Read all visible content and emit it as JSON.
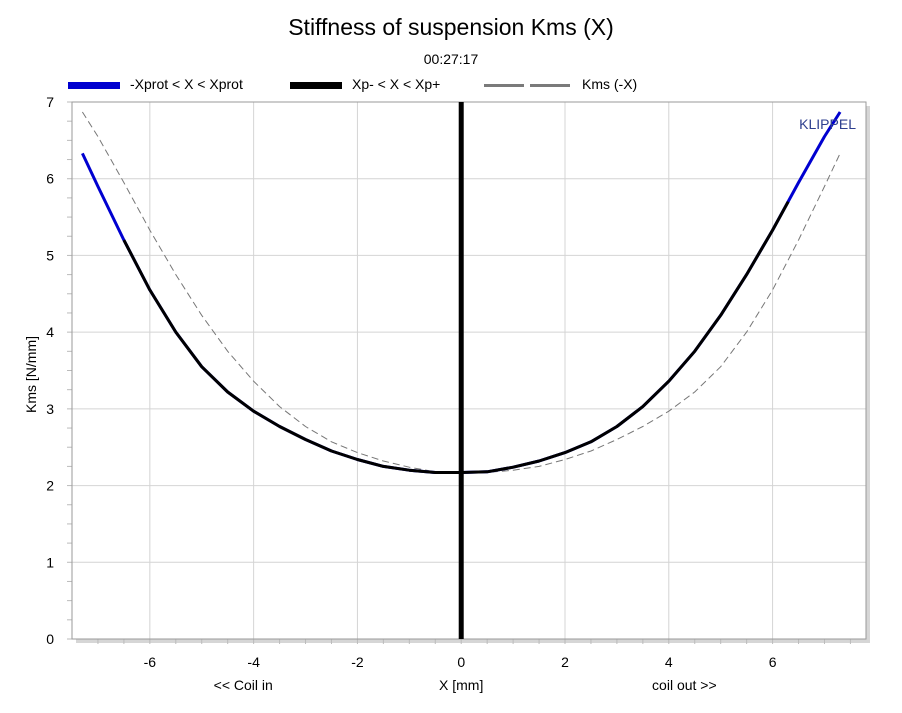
{
  "chart_data": {
    "type": "line",
    "title": "Stiffness of suspension Kms (X)",
    "subtitle": "00:27:17",
    "xlabel": "X [mm]",
    "ylabel": "Kms [N/mm]",
    "x_annotation_left": "<< Coil in",
    "x_annotation_right": "coil out >>",
    "watermark": "KLIPPEL",
    "xlim": [
      -7.5,
      7.8
    ],
    "ylim": [
      0,
      7
    ],
    "xticks": [
      "-6",
      "-4",
      "-2",
      "0",
      "2",
      "4",
      "6"
    ],
    "yticks": [
      "0",
      "1",
      "2",
      "3",
      "4",
      "5",
      "6",
      "7"
    ],
    "grid": true,
    "legend_position": "top",
    "series": [
      {
        "name": "-Xprot < X < Xprot",
        "color": "#0000d0",
        "style": "solid-thick",
        "x": [
          -7.3,
          -7.0,
          -6.5,
          -6.0,
          -5.5,
          -5.0,
          -4.5,
          -4.0,
          -3.5,
          -3.0,
          -2.5,
          -2.0,
          -1.5,
          -1.0,
          -0.5,
          0.0,
          0.5,
          1.0,
          1.5,
          2.0,
          2.5,
          3.0,
          3.5,
          4.0,
          4.5,
          5.0,
          5.5,
          6.0,
          6.5,
          7.0,
          7.3
        ],
        "y": [
          6.33,
          5.9,
          5.2,
          4.55,
          4.0,
          3.55,
          3.22,
          2.97,
          2.77,
          2.6,
          2.45,
          2.34,
          2.25,
          2.2,
          2.17,
          2.17,
          2.18,
          2.24,
          2.32,
          2.43,
          2.57,
          2.77,
          3.03,
          3.36,
          3.75,
          4.22,
          4.75,
          5.33,
          5.95,
          6.55,
          6.87
        ]
      },
      {
        "name": "Xp- < X < Xp+",
        "color": "#000000",
        "style": "solid-thick",
        "x": [
          -6.5,
          -6.0,
          -5.5,
          -5.0,
          -4.5,
          -4.0,
          -3.5,
          -3.0,
          -2.5,
          -2.0,
          -1.5,
          -1.0,
          -0.5,
          0.0,
          0.5,
          1.0,
          1.5,
          2.0,
          2.5,
          3.0,
          3.5,
          4.0,
          4.5,
          5.0,
          5.5,
          6.0,
          6.3
        ],
        "y": [
          5.2,
          4.55,
          4.0,
          3.55,
          3.22,
          2.97,
          2.77,
          2.6,
          2.45,
          2.34,
          2.25,
          2.2,
          2.17,
          2.17,
          2.18,
          2.24,
          2.32,
          2.43,
          2.57,
          2.77,
          3.03,
          3.36,
          3.75,
          4.22,
          4.75,
          5.33,
          5.7
        ]
      },
      {
        "name": "Kms (-X)",
        "color": "#777777",
        "style": "dashed-thin",
        "x": [
          -7.3,
          -7.0,
          -6.5,
          -6.0,
          -5.5,
          -5.0,
          -4.5,
          -4.0,
          -3.5,
          -3.0,
          -2.5,
          -2.0,
          -1.5,
          -1.0,
          -0.5,
          0.0,
          0.5,
          1.0,
          1.5,
          2.0,
          2.5,
          3.0,
          3.5,
          4.0,
          4.5,
          5.0,
          5.5,
          6.0,
          6.5,
          7.0,
          7.3
        ],
        "y": [
          6.87,
          6.55,
          5.95,
          5.33,
          4.75,
          4.22,
          3.75,
          3.36,
          3.03,
          2.77,
          2.57,
          2.43,
          2.32,
          2.24,
          2.18,
          2.17,
          2.17,
          2.2,
          2.25,
          2.34,
          2.45,
          2.6,
          2.77,
          2.97,
          3.22,
          3.55,
          4.0,
          4.55,
          5.2,
          5.9,
          6.33
        ]
      }
    ],
    "vertical_marker": {
      "x": 0,
      "color": "#000000"
    }
  }
}
